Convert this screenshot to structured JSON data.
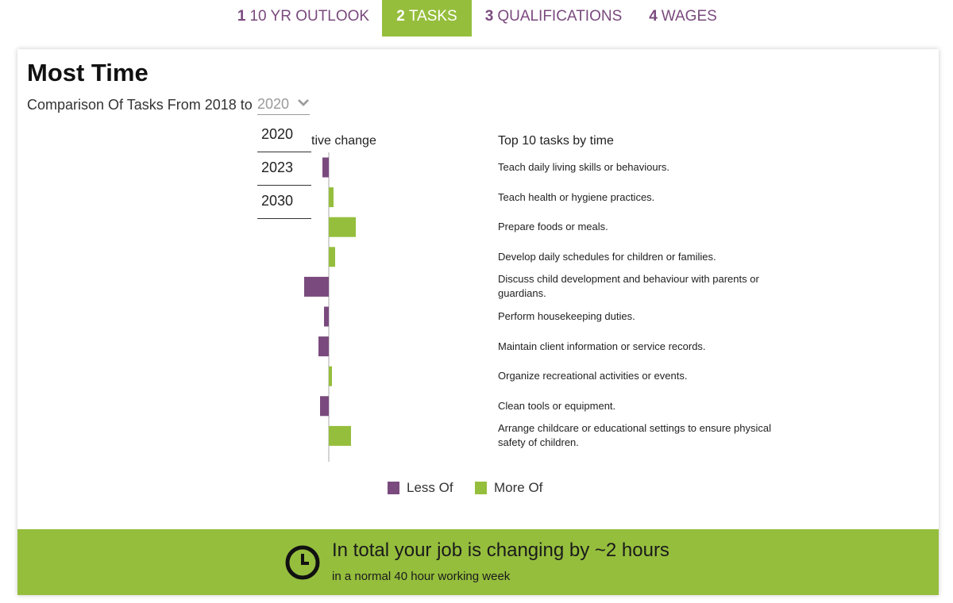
{
  "tabs": [
    {
      "num": "1",
      "label": "10 YR OUTLOOK"
    },
    {
      "num": "2",
      "label": "TASKS"
    },
    {
      "num": "3",
      "label": "QUALIFICATIONS"
    },
    {
      "num": "4",
      "label": "WAGES"
    }
  ],
  "active_tab": 1,
  "section": {
    "title": "Most Time",
    "subtitle": "Comparison Of Tasks From 2018 to",
    "year_select": {
      "value": "2020",
      "options": [
        "2020",
        "2023",
        "2030"
      ]
    }
  },
  "chart_headings": {
    "change_visible": "tive change",
    "tasks": "Top 10 tasks by time"
  },
  "legend": {
    "less": "Less Of",
    "more": "More Of"
  },
  "colors": {
    "less": "#7a4a7e",
    "more": "#95be3d",
    "accent": "#95be3d"
  },
  "chart_data": {
    "type": "bar",
    "orientation": "horizontal",
    "categories": [
      "Teach daily living skills or behaviours.",
      "Teach health or hygiene practices.",
      "Prepare foods or meals.",
      "Develop daily schedules for children or families.",
      "Discuss child development and behaviour with parents or guardians.",
      "Perform housekeeping duties.",
      "Maintain client information or service records.",
      "Organize recreational activities or events.",
      "Clean tools or equipment.",
      "Arrange childcare or educational settings to ensure physical safety of children."
    ],
    "values": [
      -8,
      6,
      34,
      8,
      -31,
      -6,
      -13,
      4,
      -11,
      28
    ]
  },
  "footer": {
    "main": "In total your job is changing by ~2 hours",
    "sub": "in a normal 40 hour working week",
    "icon": "clock-icon"
  }
}
